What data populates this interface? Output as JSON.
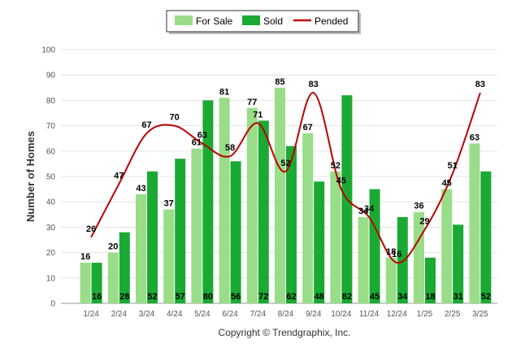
{
  "chart_data": {
    "type": "bar",
    "title": "",
    "xlabel": "",
    "ylabel": "Number of Homes",
    "ylim": [
      0,
      100
    ],
    "yticks": [
      0,
      10,
      20,
      30,
      40,
      50,
      60,
      70,
      80,
      90,
      100
    ],
    "grid": true,
    "legend_position": "top-center",
    "categories": [
      "1/24",
      "2/24",
      "3/24",
      "4/24",
      "5/24",
      "6/24",
      "7/24",
      "8/24",
      "9/24",
      "10/24",
      "11/24",
      "12/24",
      "1/25",
      "2/25",
      "3/25"
    ],
    "series": [
      {
        "name": "For Sale",
        "type": "bar",
        "color": "#99dd88",
        "values": [
          16,
          20,
          43,
          37,
          61,
          81,
          77,
          85,
          67,
          52,
          34,
          18,
          36,
          45,
          63
        ]
      },
      {
        "name": "Sold",
        "type": "bar",
        "color": "#1aaa33",
        "values": [
          16,
          28,
          52,
          57,
          80,
          56,
          72,
          62,
          48,
          82,
          45,
          34,
          18,
          31,
          52
        ]
      },
      {
        "name": "Pended",
        "type": "line",
        "color": "#bb0000",
        "values": [
          26,
          47,
          67,
          70,
          63,
          58,
          71,
          52,
          83,
          45,
          34,
          16,
          29,
          51,
          83
        ]
      }
    ]
  },
  "footer": {
    "copyright": "Copyright © Trendgraphix, Inc."
  }
}
